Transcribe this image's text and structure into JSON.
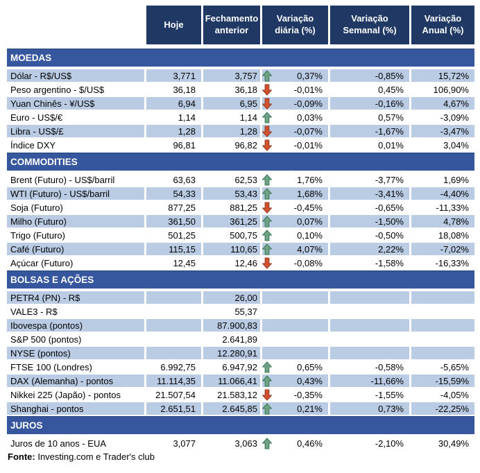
{
  "chart_data": {
    "type": "table",
    "columns": [
      "Hoje",
      "Fechamento anterior",
      "Variação diária (%)",
      "Variação Semanal (%)",
      "Variação Anual (%)"
    ],
    "sections": [
      {
        "title": "MOEDAS",
        "rows": [
          {
            "label": "Dólar - R$/US$",
            "hoje": "3,771",
            "fechamento": "3,757",
            "trend": "up",
            "var_diaria": "0,37%",
            "var_semanal": "-0,85%",
            "var_anual": "15,72%"
          },
          {
            "label": "Peso argentino - $/US$",
            "hoje": "36,18",
            "fechamento": "36,18",
            "trend": "down",
            "var_diaria": "-0,01%",
            "var_semanal": "0,45%",
            "var_anual": "106,90%"
          },
          {
            "label": "Yuan Chinês - ¥/US$",
            "hoje": "6,94",
            "fechamento": "6,95",
            "trend": "down",
            "var_diaria": "-0,09%",
            "var_semanal": "-0,16%",
            "var_anual": "4,67%"
          },
          {
            "label": "Euro - US$/€",
            "hoje": "1,14",
            "fechamento": "1,14",
            "trend": "up",
            "var_diaria": "0,03%",
            "var_semanal": "0,57%",
            "var_anual": "-3,09%"
          },
          {
            "label": "Libra - US$/£",
            "hoje": "1,28",
            "fechamento": "1,28",
            "trend": "down",
            "var_diaria": "-0,07%",
            "var_semanal": "-1,67%",
            "var_anual": "-3,47%"
          },
          {
            "label": "Índice DXY",
            "hoje": "96,81",
            "fechamento": "96,82",
            "trend": "down",
            "var_diaria": "-0,01%",
            "var_semanal": "0,01%",
            "var_anual": "3,04%"
          }
        ]
      },
      {
        "title": "COMMODITIES",
        "rows": [
          {
            "label": "Brent (Futuro) - US$/barril",
            "hoje": "63,63",
            "fechamento": "62,53",
            "trend": "up",
            "var_diaria": "1,76%",
            "var_semanal": "-3,77%",
            "var_anual": "1,69%"
          },
          {
            "label": "WTI (Futuro) - US$/barril",
            "hoje": "54,33",
            "fechamento": "53,43",
            "trend": "up",
            "var_diaria": "1,68%",
            "var_semanal": "-3,41%",
            "var_anual": "-4,40%"
          },
          {
            "label": "Soja (Futuro)",
            "hoje": "877,25",
            "fechamento": "881,25",
            "trend": "down",
            "var_diaria": "-0,45%",
            "var_semanal": "-0,65%",
            "var_anual": "-11,33%"
          },
          {
            "label": "Milho (Futuro)",
            "hoje": "361,50",
            "fechamento": "361,25",
            "trend": "up",
            "var_diaria": "0,07%",
            "var_semanal": "-1,50%",
            "var_anual": "4,78%"
          },
          {
            "label": "Trigo (Futuro)",
            "hoje": "501,25",
            "fechamento": "500,75",
            "trend": "up",
            "var_diaria": "0,10%",
            "var_semanal": "-0,50%",
            "var_anual": "18,08%"
          },
          {
            "label": "Café (Futuro)",
            "hoje": "115,15",
            "fechamento": "110,65",
            "trend": "up",
            "var_diaria": "4,07%",
            "var_semanal": "2,22%",
            "var_anual": "-7,02%"
          },
          {
            "label": "Açúcar (Futuro)",
            "hoje": "12,45",
            "fechamento": "12,46",
            "trend": "down",
            "var_diaria": "-0,08%",
            "var_semanal": "-1,58%",
            "var_anual": "-16,33%"
          }
        ]
      },
      {
        "title": "BOLSAS E AÇÕES",
        "rows": [
          {
            "label": "PETR4 (PN) - R$",
            "hoje": "",
            "fechamento": "26,00",
            "trend": null,
            "var_diaria": "",
            "var_semanal": "",
            "var_anual": ""
          },
          {
            "label": "VALE3 - R$",
            "hoje": "",
            "fechamento": "55,37",
            "trend": null,
            "var_diaria": "",
            "var_semanal": "",
            "var_anual": ""
          },
          {
            "label": "Ibovespa (pontos)",
            "hoje": "",
            "fechamento": "87.900,83",
            "trend": null,
            "var_diaria": "",
            "var_semanal": "",
            "var_anual": ""
          },
          {
            "label": "S&P 500 (pontos)",
            "hoje": "",
            "fechamento": "2.641,89",
            "trend": null,
            "var_diaria": "",
            "var_semanal": "",
            "var_anual": ""
          },
          {
            "label": "NYSE (pontos)",
            "hoje": "",
            "fechamento": "12.280,91",
            "trend": null,
            "var_diaria": "",
            "var_semanal": "",
            "var_anual": ""
          },
          {
            "label": "FTSE 100 (Londres)",
            "hoje": "6.992,75",
            "fechamento": "6.947,92",
            "trend": "up",
            "var_diaria": "0,65%",
            "var_semanal": "-0,58%",
            "var_anual": "-5,65%"
          },
          {
            "label": "DAX (Alemanha) - pontos",
            "hoje": "11.114,35",
            "fechamento": "11.066,41",
            "trend": "up",
            "var_diaria": "0,43%",
            "var_semanal": "-11,66%",
            "var_anual": "-15,59%"
          },
          {
            "label": "Nikkei 225 (Japão) - pontos",
            "hoje": "21.507,54",
            "fechamento": "21.583,12",
            "trend": "down",
            "var_diaria": "-0,35%",
            "var_semanal": "-1,55%",
            "var_anual": "-4,05%"
          },
          {
            "label": "Shanghai - pontos",
            "hoje": "2.651,51",
            "fechamento": "2.645,85",
            "trend": "up",
            "var_diaria": "0,21%",
            "var_semanal": "0,73%",
            "var_anual": "-22,25%"
          }
        ]
      },
      {
        "title": "JUROS",
        "rows": [
          {
            "label": "Juros de 10 anos - EUA",
            "hoje": "3,077",
            "fechamento": "3,063",
            "trend": "up",
            "var_diaria": "0,46%",
            "var_semanal": "-2,10%",
            "var_anual": "30,49%"
          }
        ]
      }
    ]
  },
  "footer": {
    "label": "Fonte:",
    "text": " Investing.com e Trader's club"
  },
  "colors": {
    "header_bg": "#1F3864",
    "section_bg": "#36579E",
    "row_shaded_bg": "#B9CCE4",
    "trend_up": "#6FA287",
    "trend_up_border": "#3D7A55",
    "trend_down": "#D2512E",
    "trend_down_border": "#9A3A1F"
  }
}
